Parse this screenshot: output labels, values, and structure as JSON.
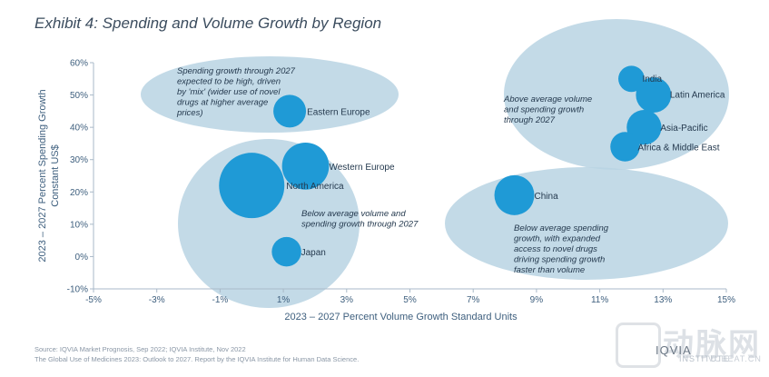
{
  "header": {
    "title": "Exhibit 4: Spending and Volume Growth by Region"
  },
  "chart_data": {
    "type": "scatter",
    "title": "Exhibit 4: Spending and Volume Growth by Region",
    "xlabel": "2023 – 2027 Percent Volume Growth Standard Units",
    "ylabel_lines": [
      "2023 – 2027 Percent Spending Growth",
      "Constant US$"
    ],
    "xlim": [
      -5,
      15
    ],
    "ylim": [
      -10,
      60
    ],
    "x_ticks": [
      "-5%",
      "-3%",
      "-1%",
      "1%",
      "3%",
      "5%",
      "7%",
      "9%",
      "11%",
      "13%",
      "15%"
    ],
    "y_ticks": [
      "60%",
      "50%",
      "40%",
      "30%",
      "20%",
      "10%",
      "0%",
      "-10%"
    ],
    "grid": false,
    "bubble_color": "#1f9ad6",
    "ellipse_color": "#b9d3e3",
    "points": [
      {
        "label": "North America",
        "x": 0.0,
        "y": 22,
        "size": 1.0
      },
      {
        "label": "Western Europe",
        "x": 1.7,
        "y": 28,
        "size": 0.62
      },
      {
        "label": "Eastern Europe",
        "x": 1.2,
        "y": 45,
        "size": 0.34
      },
      {
        "label": "Japan",
        "x": 1.1,
        "y": 1.5,
        "size": 0.28
      },
      {
        "label": "China",
        "x": 8.3,
        "y": 19,
        "size": 0.48
      },
      {
        "label": "India",
        "x": 12.0,
        "y": 55,
        "size": 0.22
      },
      {
        "label": "Latin America",
        "x": 12.7,
        "y": 50,
        "size": 0.39
      },
      {
        "label": "Asia-Pacific",
        "x": 12.4,
        "y": 40,
        "size": 0.38
      },
      {
        "label": "Africa & Middle East",
        "x": 11.8,
        "y": 34,
        "size": 0.28
      }
    ],
    "annotations": [
      "Spending growth through 2027 expected to be high, driven by 'mix' (wider use of novel drugs at higher average prices)",
      "Above average volume and spending growth through 2027",
      "Below average volume and spending growth through 2027",
      "Below average spending growth, with expanded access to novel drugs driving spending growth faster than volume"
    ]
  },
  "source": {
    "line1": "Source: IQVIA Market Prognosis, Sep 2022; IQVIA Institute, Nov 2022",
    "line2": "The Global Use of Medicines 2023: Outlook to 2027. Report by the IQVIA Institute for Human Data Science."
  },
  "watermark": {
    "brand": "IQVIA",
    "sub": "INSTITUTE",
    "site_text": "动脉网",
    "site_url": "VCBEAT.CN"
  }
}
